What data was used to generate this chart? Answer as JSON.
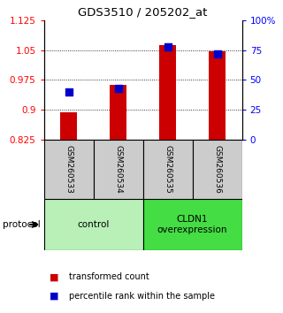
{
  "title": "GDS3510 / 205202_at",
  "samples": [
    "GSM260533",
    "GSM260534",
    "GSM260535",
    "GSM260536"
  ],
  "transformed_count": [
    0.893,
    0.963,
    1.063,
    1.048
  ],
  "percentile_rank": [
    40,
    43,
    78,
    72
  ],
  "ylim_left": [
    0.825,
    1.125
  ],
  "ylim_right": [
    0,
    100
  ],
  "yticks_left": [
    0.825,
    0.9,
    0.975,
    1.05,
    1.125
  ],
  "yticks_right": [
    0,
    25,
    50,
    75,
    100
  ],
  "ytick_labels_right": [
    "0",
    "25",
    "50",
    "75",
    "100%"
  ],
  "groups": [
    {
      "label": "control",
      "samples": [
        0,
        1
      ],
      "color": "#b8f0b8"
    },
    {
      "label": "CLDN1\noverexpression",
      "samples": [
        2,
        3
      ],
      "color": "#44dd44"
    }
  ],
  "bar_color": "#cc0000",
  "dot_color": "#0000cc",
  "bar_width": 0.35,
  "dot_size": 40,
  "protocol_label": "protocol",
  "legend_items": [
    {
      "color": "#cc0000",
      "label": "transformed count"
    },
    {
      "color": "#0000cc",
      "label": "percentile rank within the sample"
    }
  ],
  "background_color": "#ffffff",
  "sample_box_color": "#cccccc"
}
